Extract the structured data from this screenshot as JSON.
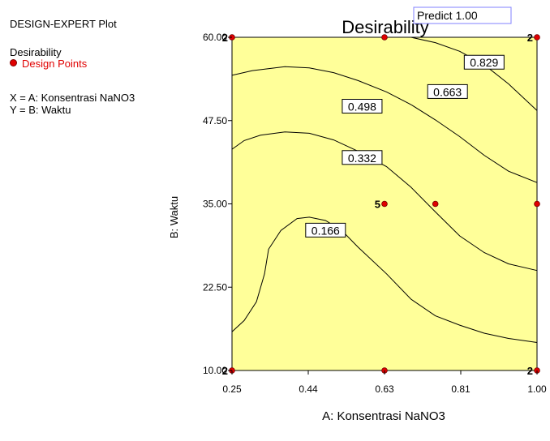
{
  "panel": {
    "program": "DESIGN-EXPERT Plot",
    "response": "Desirability",
    "points_label": "Design Points",
    "x_def": "X = A: Konsentrasi NaNO3",
    "y_def": "Y = B: Waktu"
  },
  "predict_label": "Predict 1.00",
  "chart_data": {
    "type": "contour",
    "title": "Desirability",
    "xlabel": "A: Konsentrasi NaNO3",
    "ylabel": "B: Waktu",
    "xlim": [
      0.25,
      1.0
    ],
    "ylim": [
      10.0,
      60.0
    ],
    "xticks": [
      "0.25",
      "0.44",
      "0.63",
      "0.81",
      "1.00"
    ],
    "yticks": [
      "10.00",
      "22.50",
      "35.00",
      "47.50",
      "60.00"
    ],
    "fill_color": "#ffff99",
    "design_point_color": "#e00000",
    "contours": [
      {
        "level": "0.829",
        "points": [
          [
            0.69,
            60.0
          ],
          [
            0.75,
            59.2
          ],
          [
            0.81,
            57.9
          ],
          [
            0.87,
            55.9
          ],
          [
            0.93,
            53.0
          ],
          [
            1.0,
            49.0
          ]
        ],
        "label_at": [
          0.87,
          56.2
        ]
      },
      {
        "level": "0.663",
        "points": [
          [
            0.25,
            54.3
          ],
          [
            0.3,
            55.0
          ],
          [
            0.38,
            55.6
          ],
          [
            0.44,
            55.4
          ],
          [
            0.5,
            54.7
          ],
          [
            0.56,
            53.5
          ],
          [
            0.63,
            51.8
          ],
          [
            0.69,
            49.9
          ],
          [
            0.75,
            47.6
          ],
          [
            0.81,
            45.1
          ],
          [
            0.87,
            42.3
          ],
          [
            0.93,
            39.9
          ],
          [
            1.0,
            38.2
          ]
        ],
        "label_at": [
          0.78,
          51.8
        ]
      },
      {
        "level": "0.498",
        "points": [
          [
            0.25,
            43.2
          ],
          [
            0.28,
            44.5
          ],
          [
            0.32,
            45.3
          ],
          [
            0.38,
            45.8
          ],
          [
            0.44,
            45.6
          ],
          [
            0.5,
            44.6
          ],
          [
            0.56,
            42.9
          ],
          [
            0.63,
            40.6
          ],
          [
            0.69,
            37.5
          ],
          [
            0.75,
            33.8
          ],
          [
            0.81,
            30.2
          ],
          [
            0.87,
            27.7
          ],
          [
            0.93,
            26.0
          ],
          [
            1.0,
            25.0
          ]
        ],
        "label_at": [
          0.57,
          49.6
        ]
      },
      {
        "level": "0.332",
        "points": [
          [
            0.25,
            15.8
          ],
          [
            0.28,
            17.5
          ],
          [
            0.31,
            20.3
          ],
          [
            0.33,
            24.5
          ],
          [
            0.34,
            28.2
          ],
          [
            0.37,
            31.0
          ],
          [
            0.41,
            32.8
          ],
          [
            0.44,
            33.0
          ],
          [
            0.48,
            32.5
          ],
          [
            0.52,
            31.0
          ],
          [
            0.56,
            28.5
          ],
          [
            0.63,
            24.5
          ],
          [
            0.69,
            20.7
          ],
          [
            0.75,
            18.2
          ],
          [
            0.81,
            16.8
          ],
          [
            0.87,
            15.6
          ],
          [
            0.93,
            14.8
          ],
          [
            1.0,
            14.2
          ]
        ],
        "label_at": [
          0.57,
          41.9
        ]
      },
      {
        "level": "0.166",
        "points": [],
        "label_at": [
          0.48,
          31.0
        ]
      }
    ],
    "design_points": [
      {
        "x": 0.25,
        "y": 60.0,
        "count": "2"
      },
      {
        "x": 0.625,
        "y": 60.0,
        "count": ""
      },
      {
        "x": 1.0,
        "y": 60.0,
        "count": "2"
      },
      {
        "x": 0.625,
        "y": 35.0,
        "count": "5"
      },
      {
        "x": 0.75,
        "y": 35.0,
        "count": ""
      },
      {
        "x": 1.0,
        "y": 35.0,
        "count": ""
      },
      {
        "x": 0.25,
        "y": 10.0,
        "count": "2"
      },
      {
        "x": 0.625,
        "y": 10.0,
        "count": ""
      },
      {
        "x": 1.0,
        "y": 10.0,
        "count": "2"
      }
    ]
  }
}
